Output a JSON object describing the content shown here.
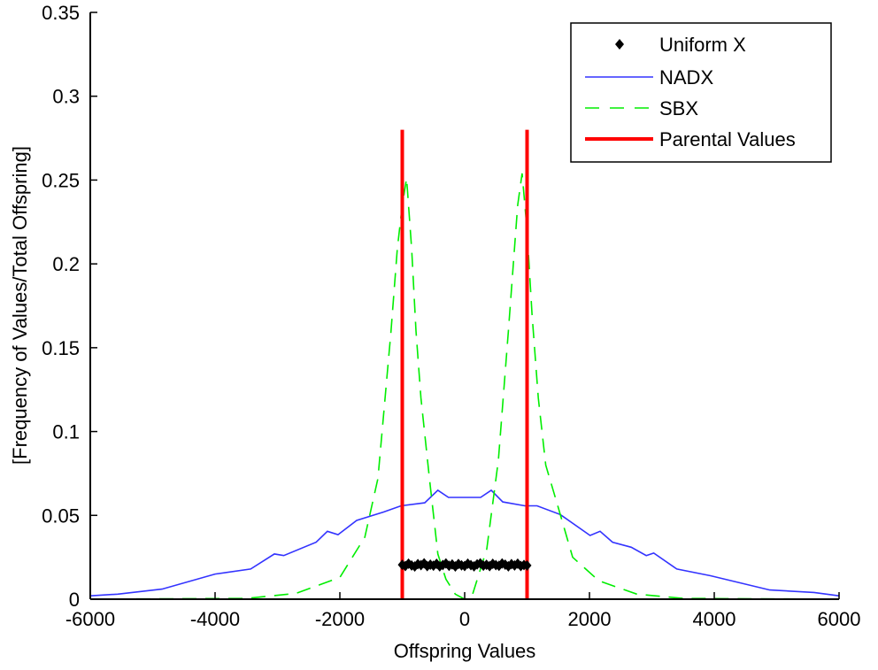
{
  "chart_data": {
    "type": "line",
    "title": "",
    "xlabel": "Offspring Values",
    "ylabel": "[Frequency of Values/Total Offspring]",
    "xlim": [
      -6000,
      6000
    ],
    "ylim": [
      0,
      0.35
    ],
    "xticks": [
      -6000,
      -4000,
      -2000,
      0,
      2000,
      4000,
      6000
    ],
    "xtick_labels": [
      "-6000",
      "-4000",
      "-2000",
      "0",
      "2000",
      "4000",
      "6000"
    ],
    "yticks": [
      0,
      0.05,
      0.1,
      0.15,
      0.2,
      0.25,
      0.3,
      0.35
    ],
    "ytick_labels": [
      "0",
      "0.05",
      "0.1",
      "0.15",
      "0.2",
      "0.25",
      "0.3",
      "0.35"
    ],
    "grid": false,
    "legend_position": "top-right",
    "series": [
      {
        "name": "Uniform X",
        "style": "markers",
        "marker": "diamond",
        "color": "#000000",
        "x": [
          -1000,
          -950,
          -900,
          -850,
          -800,
          -750,
          -700,
          -650,
          -600,
          -550,
          -500,
          -450,
          -400,
          -350,
          -300,
          -250,
          -200,
          -150,
          -100,
          -50,
          0,
          50,
          100,
          150,
          200,
          250,
          300,
          350,
          400,
          450,
          500,
          550,
          600,
          650,
          700,
          750,
          800,
          850,
          900,
          950,
          1000
        ],
        "y": [
          0.0205,
          0.0198,
          0.0212,
          0.0201,
          0.0195,
          0.0209,
          0.0203,
          0.0214,
          0.0197,
          0.0206,
          0.02,
          0.0211,
          0.0196,
          0.0204,
          0.0213,
          0.0199,
          0.0207,
          0.0195,
          0.021,
          0.0202,
          0.0198,
          0.0212,
          0.0203,
          0.0196,
          0.0208,
          0.0214,
          0.02,
          0.0205,
          0.0197,
          0.0211,
          0.0203,
          0.0199,
          0.0213,
          0.0206,
          0.0196,
          0.0209,
          0.0201,
          0.0212,
          0.0198,
          0.0204,
          0.0201
        ]
      },
      {
        "name": "NADX",
        "style": "solid",
        "color": "#3333ff",
        "x": [
          -6000,
          -5560,
          -4850,
          -4000,
          -3430,
          -3050,
          -2900,
          -2380,
          -2200,
          -2030,
          -1730,
          -1300,
          -1020,
          -640,
          -430,
          -260,
          -70,
          255,
          425,
          610,
          965,
          1160,
          1530,
          2010,
          2170,
          2370,
          2670,
          2910,
          3030,
          3400,
          3940,
          4890,
          5600,
          6000
        ],
        "y": [
          0.002,
          0.003,
          0.006,
          0.015,
          0.018,
          0.027,
          0.026,
          0.034,
          0.0405,
          0.0385,
          0.047,
          0.052,
          0.0557,
          0.0575,
          0.065,
          0.0607,
          0.0607,
          0.0607,
          0.065,
          0.058,
          0.0557,
          0.0557,
          0.0505,
          0.038,
          0.0405,
          0.034,
          0.031,
          0.026,
          0.0275,
          0.018,
          0.014,
          0.0055,
          0.004,
          0.002
        ]
      },
      {
        "name": "SBX",
        "style": "dashed",
        "color": "#00ee00",
        "x": [
          -6000,
          -3500,
          -2700,
          -2000,
          -1600,
          -1390,
          -1180,
          -1080,
          -1000,
          -930,
          -850,
          -780,
          -700,
          -565,
          -430,
          -300,
          -150,
          0,
          110,
          355,
          540,
          700,
          780,
          850,
          920,
          1000,
          1080,
          1180,
          1300,
          1490,
          1730,
          2150,
          2760,
          3500,
          6000
        ],
        "y": [
          0,
          0.0005,
          0.0035,
          0.013,
          0.037,
          0.072,
          0.16,
          0.209,
          0.235,
          0.251,
          0.209,
          0.16,
          0.12,
          0.072,
          0.027,
          0.012,
          0.003,
          0,
          0.001,
          0.03,
          0.083,
          0.16,
          0.2,
          0.235,
          0.254,
          0.22,
          0.17,
          0.12,
          0.08,
          0.056,
          0.025,
          0.011,
          0.003,
          0.0005,
          0
        ]
      },
      {
        "name": "Parental Values",
        "style": "solid-thick",
        "color": "#ff0000",
        "x": [
          -1000,
          1000
        ],
        "y": [
          0.28,
          0.28
        ]
      }
    ]
  }
}
